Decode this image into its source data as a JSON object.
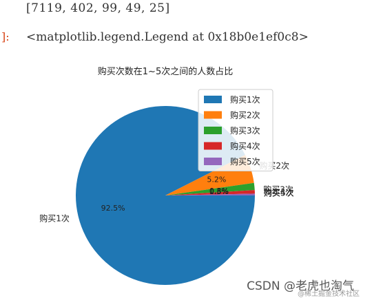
{
  "cells": {
    "output_text": "[7119, 402, 99, 49, 25]",
    "prompt_text": "]:",
    "legend_repr": "<matplotlib.legend.Legend at 0x18b0e1ef0c8>"
  },
  "chart_data": {
    "type": "pie",
    "title": "购买次数在1~5次之间的人数占比",
    "categories": [
      "购买1次",
      "购买2次",
      "购买3次",
      "购买4次",
      "购买5次"
    ],
    "values": [
      7119,
      402,
      99,
      49,
      25
    ],
    "percent_labels": [
      "92.5%",
      "5.2%",
      "1.3%",
      "0.6%",
      "0.3%"
    ],
    "colors": [
      "#1f77b4",
      "#ff7f0e",
      "#2ca02c",
      "#d62728",
      "#9467bd"
    ],
    "legend": {
      "position": "top-right",
      "entries": [
        "购买1次",
        "购买2次",
        "购买3次",
        "购买4次",
        "购买5次"
      ]
    },
    "startangle": 0,
    "direction": "clockwise"
  },
  "watermark": {
    "text": "CSDN @老虎也淘气",
    "sub": "@稀土掘金技术社区"
  }
}
